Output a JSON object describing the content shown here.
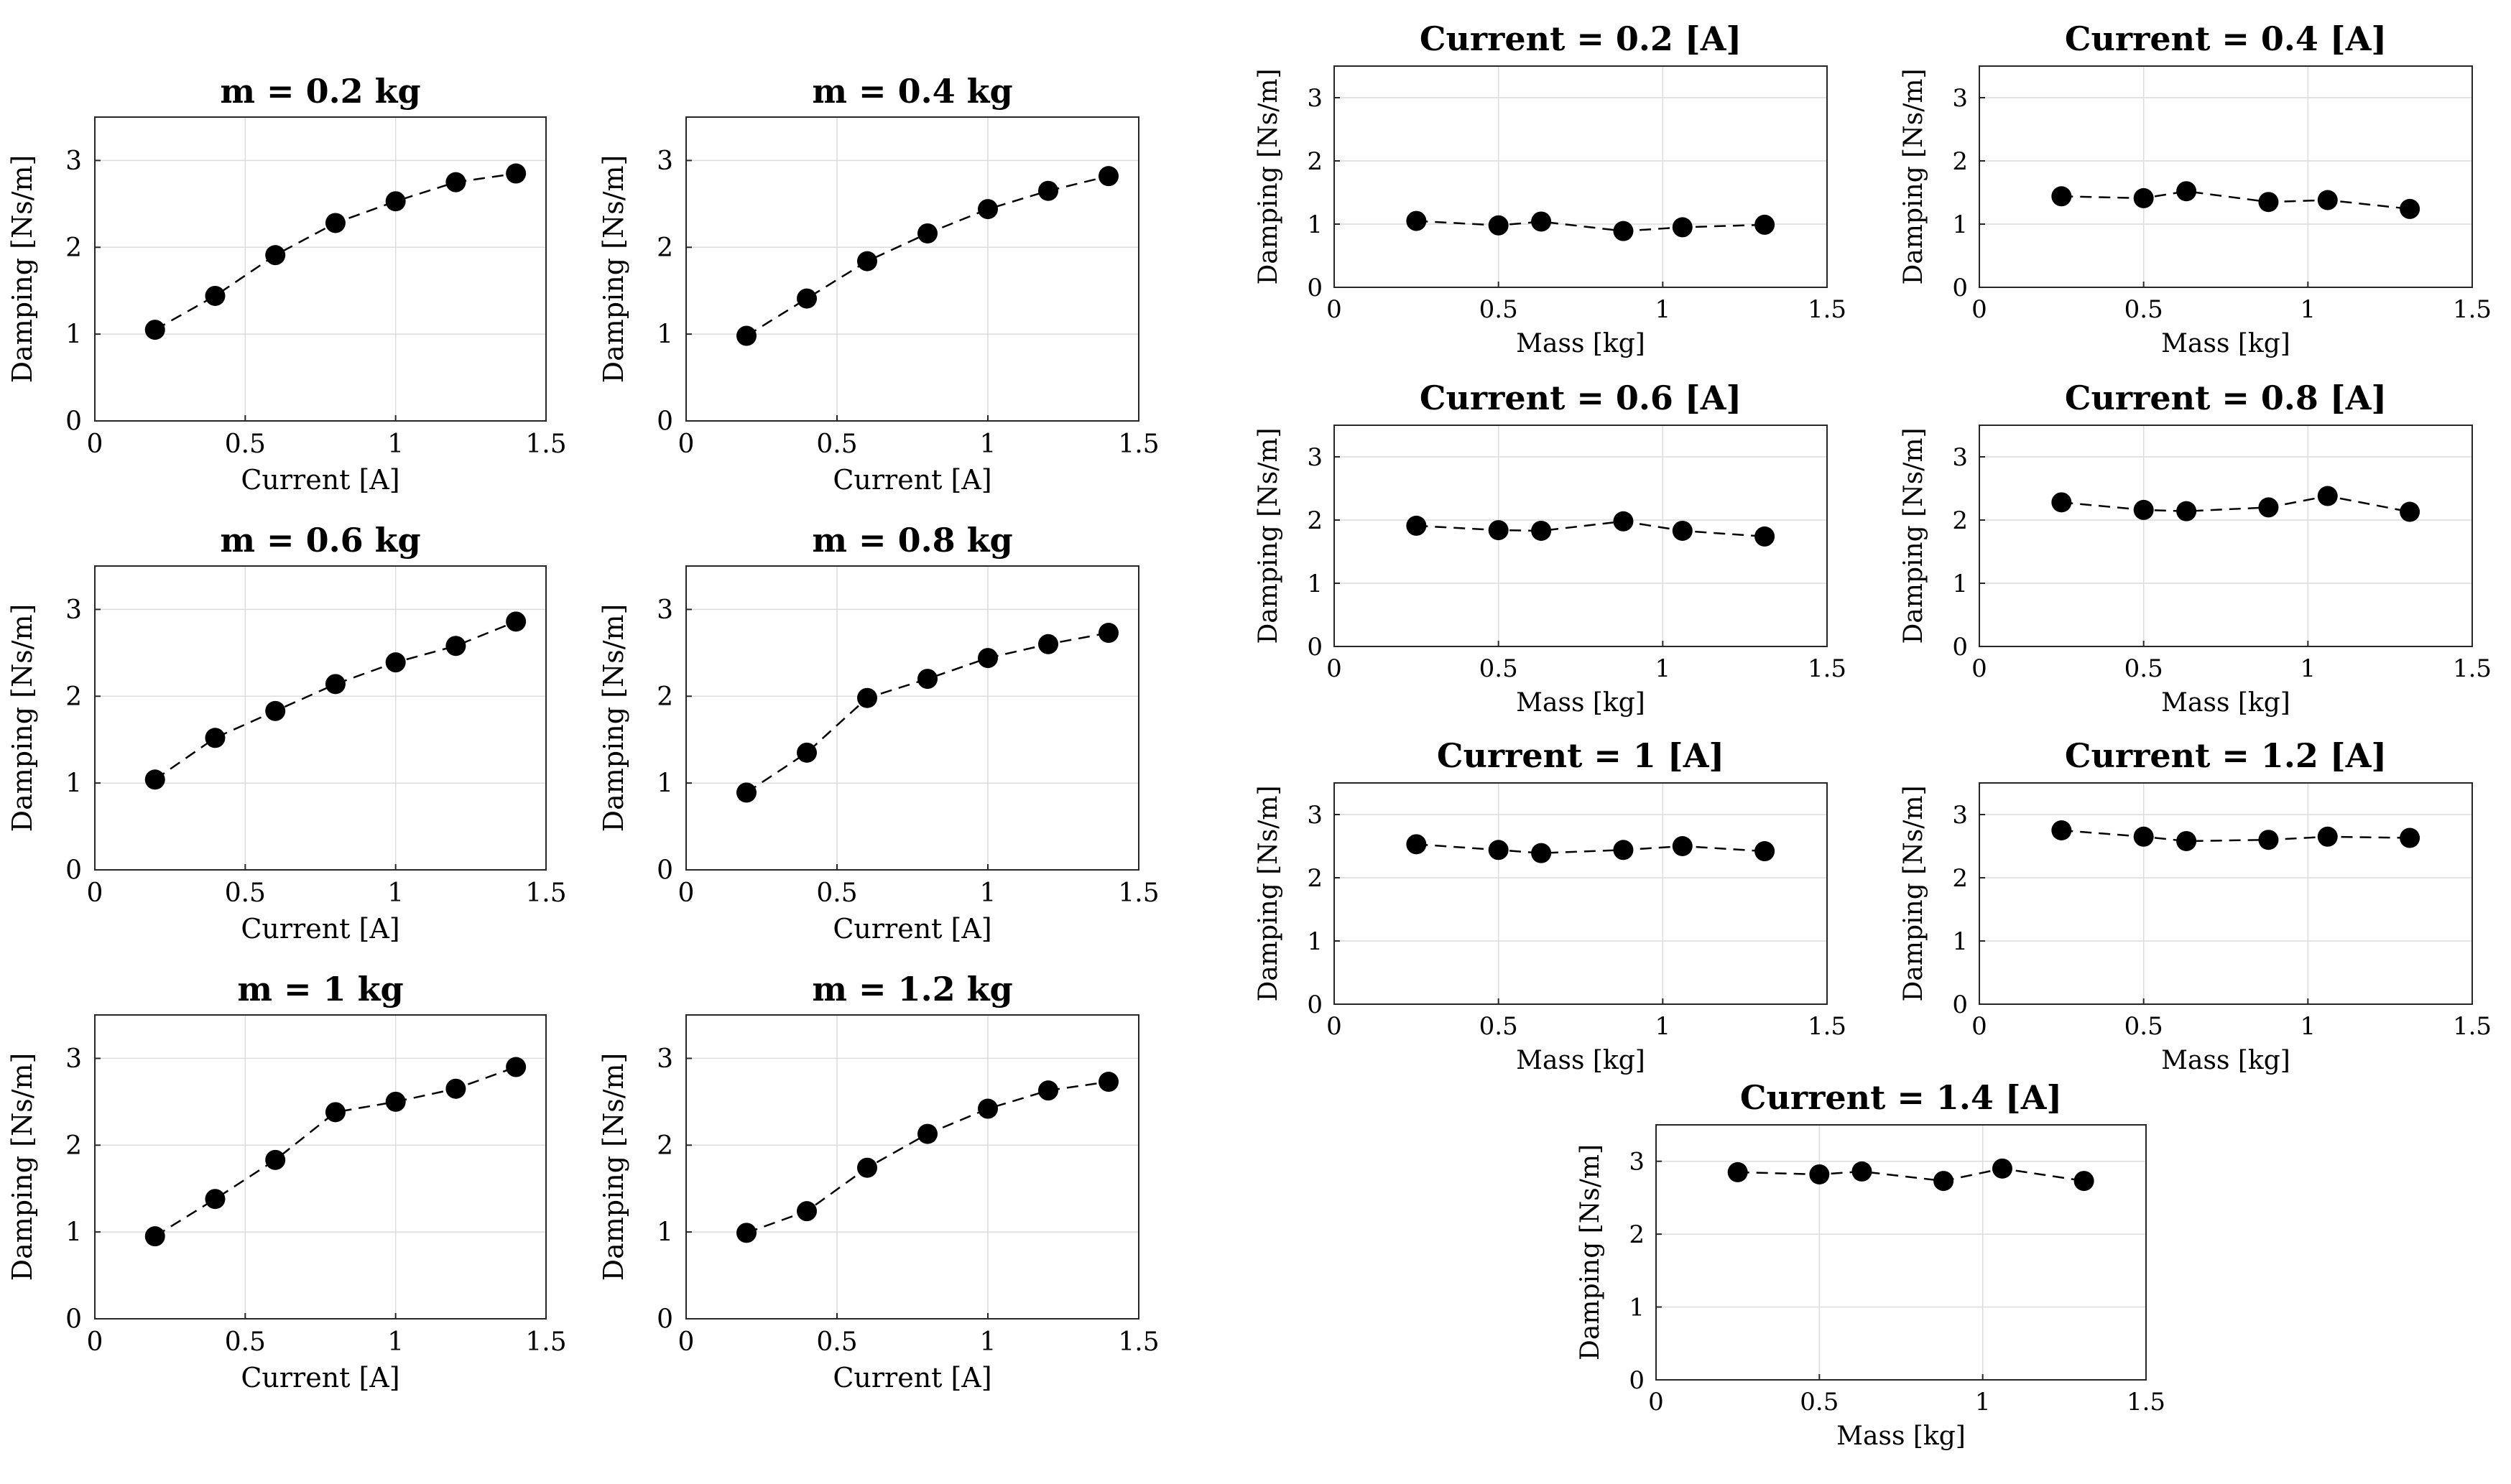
{
  "chart_data": [
    {
      "type": "line",
      "title": "m = 0.2 kg",
      "xlabel": "Current [A]",
      "ylabel": "Damping [Ns/m]",
      "xlim": [
        0,
        1.5
      ],
      "ylim": [
        0,
        3.5
      ],
      "xticks": [
        0,
        0.5,
        1,
        1.5
      ],
      "xtick_labels": [
        "0",
        "0.5",
        "1",
        "1.5"
      ],
      "yticks": [
        0,
        1,
        2,
        3
      ],
      "ytick_labels": [
        "0",
        "1",
        "2",
        "3"
      ],
      "x": [
        0.2,
        0.4,
        0.6,
        0.8,
        1.0,
        1.2,
        1.4
      ],
      "y": [
        1.05,
        1.44,
        1.91,
        2.28,
        2.53,
        2.75,
        2.85
      ]
    },
    {
      "type": "line",
      "title": "m = 0.4 kg",
      "xlabel": "Current [A]",
      "ylabel": "Damping [Ns/m]",
      "xlim": [
        0,
        1.5
      ],
      "ylim": [
        0,
        3.5
      ],
      "xticks": [
        0,
        0.5,
        1,
        1.5
      ],
      "xtick_labels": [
        "0",
        "0.5",
        "1",
        "1.5"
      ],
      "yticks": [
        0,
        1,
        2,
        3
      ],
      "ytick_labels": [
        "0",
        "1",
        "2",
        "3"
      ],
      "x": [
        0.2,
        0.4,
        0.6,
        0.8,
        1.0,
        1.2,
        1.4
      ],
      "y": [
        0.98,
        1.41,
        1.84,
        2.16,
        2.44,
        2.65,
        2.82
      ]
    },
    {
      "type": "line",
      "title": "m = 0.6 kg",
      "xlabel": "Current [A]",
      "ylabel": "Damping [Ns/m]",
      "xlim": [
        0,
        1.5
      ],
      "ylim": [
        0,
        3.5
      ],
      "xticks": [
        0,
        0.5,
        1,
        1.5
      ],
      "xtick_labels": [
        "0",
        "0.5",
        "1",
        "1.5"
      ],
      "yticks": [
        0,
        1,
        2,
        3
      ],
      "ytick_labels": [
        "0",
        "1",
        "2",
        "3"
      ],
      "x": [
        0.2,
        0.4,
        0.6,
        0.8,
        1.0,
        1.2,
        1.4
      ],
      "y": [
        1.04,
        1.52,
        1.83,
        2.14,
        2.39,
        2.58,
        2.86
      ]
    },
    {
      "type": "line",
      "title": "m = 0.8 kg",
      "xlabel": "Current [A]",
      "ylabel": "Damping [Ns/m]",
      "xlim": [
        0,
        1.5
      ],
      "ylim": [
        0,
        3.5
      ],
      "xticks": [
        0,
        0.5,
        1,
        1.5
      ],
      "xtick_labels": [
        "0",
        "0.5",
        "1",
        "1.5"
      ],
      "yticks": [
        0,
        1,
        2,
        3
      ],
      "ytick_labels": [
        "0",
        "1",
        "2",
        "3"
      ],
      "x": [
        0.2,
        0.4,
        0.6,
        0.8,
        1.0,
        1.2,
        1.4
      ],
      "y": [
        0.89,
        1.35,
        1.98,
        2.2,
        2.44,
        2.6,
        2.73
      ]
    },
    {
      "type": "line",
      "title": "m = 1 kg",
      "xlabel": "Current [A]",
      "ylabel": "Damping [Ns/m]",
      "xlim": [
        0,
        1.5
      ],
      "ylim": [
        0,
        3.5
      ],
      "xticks": [
        0,
        0.5,
        1,
        1.5
      ],
      "xtick_labels": [
        "0",
        "0.5",
        "1",
        "1.5"
      ],
      "yticks": [
        0,
        1,
        2,
        3
      ],
      "ytick_labels": [
        "0",
        "1",
        "2",
        "3"
      ],
      "x": [
        0.2,
        0.4,
        0.6,
        0.8,
        1.0,
        1.2,
        1.4
      ],
      "y": [
        0.95,
        1.38,
        1.83,
        2.38,
        2.5,
        2.65,
        2.9
      ]
    },
    {
      "type": "line",
      "title": "m = 1.2 kg",
      "xlabel": "Current [A]",
      "ylabel": "Damping [Ns/m]",
      "xlim": [
        0,
        1.5
      ],
      "ylim": [
        0,
        3.5
      ],
      "xticks": [
        0,
        0.5,
        1,
        1.5
      ],
      "xtick_labels": [
        "0",
        "0.5",
        "1",
        "1.5"
      ],
      "yticks": [
        0,
        1,
        2,
        3
      ],
      "ytick_labels": [
        "0",
        "1",
        "2",
        "3"
      ],
      "x": [
        0.2,
        0.4,
        0.6,
        0.8,
        1.0,
        1.2,
        1.4
      ],
      "y": [
        0.99,
        1.24,
        1.74,
        2.13,
        2.42,
        2.63,
        2.73
      ]
    },
    {
      "type": "line",
      "title": "Current = 0.2 [A]",
      "xlabel": "Mass [kg]",
      "ylabel": "Damping [Ns/m]",
      "xlim": [
        0,
        1.5
      ],
      "ylim": [
        0,
        3.5
      ],
      "xticks": [
        0,
        0.5,
        1,
        1.5
      ],
      "xtick_labels": [
        "0",
        "0.5",
        "1",
        "1.5"
      ],
      "yticks": [
        0,
        1,
        2,
        3
      ],
      "ytick_labels": [
        "0",
        "1",
        "2",
        "3"
      ],
      "x": [
        0.25,
        0.5,
        0.63,
        0.88,
        1.06,
        1.31
      ],
      "y": [
        1.05,
        0.98,
        1.04,
        0.89,
        0.95,
        0.99
      ]
    },
    {
      "type": "line",
      "title": "Current = 0.4 [A]",
      "xlabel": "Mass [kg]",
      "ylabel": "Damping [Ns/m]",
      "xlim": [
        0,
        1.5
      ],
      "ylim": [
        0,
        3.5
      ],
      "xticks": [
        0,
        0.5,
        1,
        1.5
      ],
      "xtick_labels": [
        "0",
        "0.5",
        "1",
        "1.5"
      ],
      "yticks": [
        0,
        1,
        2,
        3
      ],
      "ytick_labels": [
        "0",
        "1",
        "2",
        "3"
      ],
      "x": [
        0.25,
        0.5,
        0.63,
        0.88,
        1.06,
        1.31
      ],
      "y": [
        1.44,
        1.41,
        1.52,
        1.35,
        1.38,
        1.24
      ]
    },
    {
      "type": "line",
      "title": "Current = 0.6 [A]",
      "xlabel": "Mass [kg]",
      "ylabel": "Damping [Ns/m]",
      "xlim": [
        0,
        1.5
      ],
      "ylim": [
        0,
        3.5
      ],
      "xticks": [
        0,
        0.5,
        1,
        1.5
      ],
      "xtick_labels": [
        "0",
        "0.5",
        "1",
        "1.5"
      ],
      "yticks": [
        0,
        1,
        2,
        3
      ],
      "ytick_labels": [
        "0",
        "1",
        "2",
        "3"
      ],
      "x": [
        0.25,
        0.5,
        0.63,
        0.88,
        1.06,
        1.31
      ],
      "y": [
        1.91,
        1.84,
        1.83,
        1.98,
        1.83,
        1.74
      ]
    },
    {
      "type": "line",
      "title": "Current = 0.8 [A]",
      "xlabel": "Mass [kg]",
      "ylabel": "Damping [Ns/m]",
      "xlim": [
        0,
        1.5
      ],
      "ylim": [
        0,
        3.5
      ],
      "xticks": [
        0,
        0.5,
        1,
        1.5
      ],
      "xtick_labels": [
        "0",
        "0.5",
        "1",
        "1.5"
      ],
      "yticks": [
        0,
        1,
        2,
        3
      ],
      "ytick_labels": [
        "0",
        "1",
        "2",
        "3"
      ],
      "x": [
        0.25,
        0.5,
        0.63,
        0.88,
        1.06,
        1.31
      ],
      "y": [
        2.28,
        2.16,
        2.14,
        2.2,
        2.38,
        2.13
      ]
    },
    {
      "type": "line",
      "title": "Current = 1 [A]",
      "xlabel": "Mass [kg]",
      "ylabel": "Damping [Ns/m]",
      "xlim": [
        0,
        1.5
      ],
      "ylim": [
        0,
        3.5
      ],
      "xticks": [
        0,
        0.5,
        1,
        1.5
      ],
      "xtick_labels": [
        "0",
        "0.5",
        "1",
        "1.5"
      ],
      "yticks": [
        0,
        1,
        2,
        3
      ],
      "ytick_labels": [
        "0",
        "1",
        "2",
        "3"
      ],
      "x": [
        0.25,
        0.5,
        0.63,
        0.88,
        1.06,
        1.31
      ],
      "y": [
        2.53,
        2.44,
        2.39,
        2.44,
        2.5,
        2.42
      ]
    },
    {
      "type": "line",
      "title": "Current = 1.2 [A]",
      "xlabel": "Mass [kg]",
      "ylabel": "Damping [Ns/m]",
      "xlim": [
        0,
        1.5
      ],
      "ylim": [
        0,
        3.5
      ],
      "xticks": [
        0,
        0.5,
        1,
        1.5
      ],
      "xtick_labels": [
        "0",
        "0.5",
        "1",
        "1.5"
      ],
      "yticks": [
        0,
        1,
        2,
        3
      ],
      "ytick_labels": [
        "0",
        "1",
        "2",
        "3"
      ],
      "x": [
        0.25,
        0.5,
        0.63,
        0.88,
        1.06,
        1.31
      ],
      "y": [
        2.75,
        2.65,
        2.58,
        2.6,
        2.65,
        2.63
      ]
    },
    {
      "type": "line",
      "title": "Current = 1.4 [A]",
      "xlabel": "Mass [kg]",
      "ylabel": "Damping [Ns/m]",
      "xlim": [
        0,
        1.5
      ],
      "ylim": [
        0,
        3.5
      ],
      "xticks": [
        0,
        0.5,
        1,
        1.5
      ],
      "xtick_labels": [
        "0",
        "0.5",
        "1",
        "1.5"
      ],
      "yticks": [
        0,
        1,
        2,
        3
      ],
      "ytick_labels": [
        "0",
        "1",
        "2",
        "3"
      ],
      "x": [
        0.25,
        0.5,
        0.63,
        0.88,
        1.06,
        1.31
      ],
      "y": [
        2.85,
        2.82,
        2.86,
        2.73,
        2.9,
        2.73
      ]
    }
  ]
}
